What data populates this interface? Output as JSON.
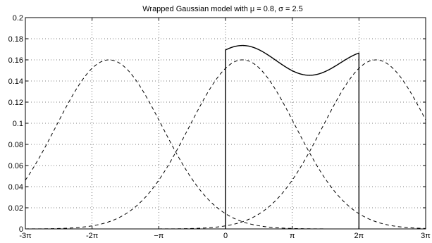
{
  "chart_data": {
    "type": "line",
    "title": "Wrapped Gaussian model with μ = 0.8, σ = 2.5",
    "xlabel": "",
    "ylabel": "",
    "xlim": [
      -9.4248,
      9.4248
    ],
    "ylim": [
      0,
      0.2
    ],
    "grid": true,
    "legend": "none",
    "mu": 0.8,
    "sigma": 2.5,
    "x_ticks": [
      {
        "value": -9.4248,
        "label": "-3π"
      },
      {
        "value": -6.2832,
        "label": "-2π"
      },
      {
        "value": -3.1416,
        "label": "−π"
      },
      {
        "value": 0,
        "label": "0"
      },
      {
        "value": 3.1416,
        "label": "π"
      },
      {
        "value": 6.2832,
        "label": "2π"
      },
      {
        "value": 9.4248,
        "label": "3π"
      }
    ],
    "y_ticks": [
      {
        "value": 0,
        "label": "0"
      },
      {
        "value": 0.02,
        "label": "0.02"
      },
      {
        "value": 0.04,
        "label": "0.04"
      },
      {
        "value": 0.06,
        "label": "0.06"
      },
      {
        "value": 0.08,
        "label": "0.08"
      },
      {
        "value": 0.1,
        "label": "0.1"
      },
      {
        "value": 0.12,
        "label": "0.12"
      },
      {
        "value": 0.14,
        "label": "0.14"
      },
      {
        "value": 0.16,
        "label": "0.16"
      },
      {
        "value": 0.18,
        "label": "0.18"
      },
      {
        "value": 0.2,
        "label": "0.2"
      }
    ],
    "series": [
      {
        "style": "dashed",
        "center": -5.4832,
        "peak": 0.16
      },
      {
        "style": "dashed",
        "center": 0.8,
        "peak": 0.16
      },
      {
        "style": "dashed",
        "center": 7.0832,
        "peak": 0.16
      },
      {
        "style": "solid",
        "domain": [
          0,
          6.2832
        ],
        "peak_y": 0.173,
        "min_y": 0.145,
        "start_y": 0.169,
        "end_y": 0.166
      }
    ]
  }
}
